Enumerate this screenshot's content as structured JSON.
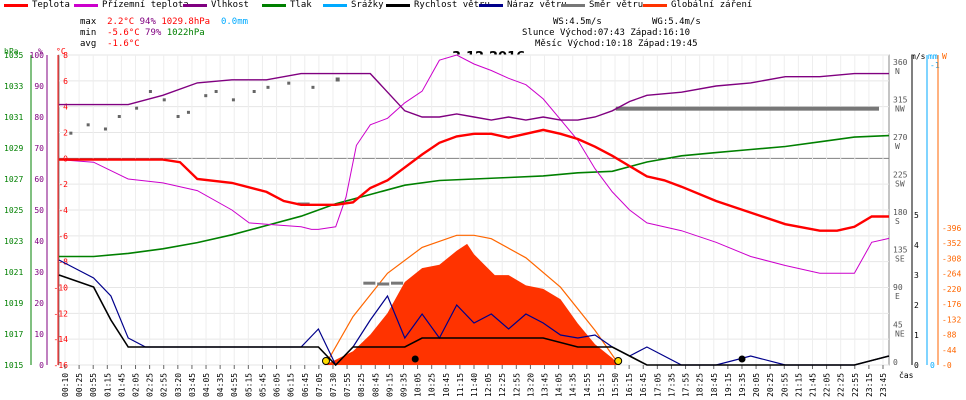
{
  "legend": [
    {
      "label": "Teplota",
      "color": "#ff0000"
    },
    {
      "label": "Přízemní teplota",
      "color": "#cc00cc"
    },
    {
      "label": "Vlhkost",
      "color": "#800080"
    },
    {
      "label": "Tlak",
      "color": "#008000"
    },
    {
      "label": "Srážky",
      "color": "#00aaff"
    },
    {
      "label": "Rychlost větru",
      "color": "#000000"
    },
    {
      "label": "Náraz větru",
      "color": "#00008b"
    },
    {
      "label": "Směr větru",
      "color": "#777777"
    },
    {
      "label": "Globální záření",
      "color": "#ff3300"
    }
  ],
  "stats": {
    "max_label": "max",
    "max_temp": "2.2°C",
    "max_hum": "94%",
    "max_press": "1029.8hPa",
    "max_rain": "0.0mm",
    "min_label": "min",
    "min_temp": "-5.6°C",
    "min_hum": "79%",
    "min_press": "1022hPa",
    "avg_label": "avg",
    "avg_temp": "-1.6°C"
  },
  "wind": {
    "ws": "WS:4.5m/s",
    "wg": "WG:5.4m/s"
  },
  "sun": {
    "label": "Slunce",
    "rise": "Východ:07:43",
    "set": "Západ:16:10"
  },
  "moon": {
    "label": "Měsíc",
    "rise": "Východ:10:18",
    "set": "Západ:19:45"
  },
  "chart_data": {
    "type": "line",
    "title": "3.12.2016",
    "xlabel": "čas",
    "x_ticks": [
      "00:10",
      "00:25",
      "00:55",
      "01:15",
      "01:45",
      "02:05",
      "02:25",
      "02:55",
      "03:20",
      "03:45",
      "04:05",
      "04:35",
      "04:55",
      "05:15",
      "05:45",
      "06:05",
      "06:15",
      "06:45",
      "07:05",
      "07:30",
      "07:55",
      "08:25",
      "08:45",
      "09:15",
      "09:35",
      "10:05",
      "10:25",
      "10:45",
      "11:15",
      "11:40",
      "12:05",
      "12:25",
      "12:55",
      "13:20",
      "13:45",
      "14:05",
      "14:35",
      "14:55",
      "15:15",
      "15:50",
      "16:15",
      "16:45",
      "17:05",
      "17:35",
      "17:55",
      "18:25",
      "18:45",
      "19:15",
      "19:35",
      "20:05",
      "20:25",
      "20:55",
      "21:15",
      "21:45",
      "22:05",
      "22:25",
      "22:55",
      "23:15",
      "23:45"
    ],
    "axes": {
      "pressure_hPa": {
        "ticks": [
          "1015",
          "1017",
          "1019",
          "1021",
          "1023",
          "1025",
          "1027",
          "1029",
          "1031",
          "1033",
          "1035"
        ],
        "label": "hPa",
        "color": "#008000"
      },
      "humidity_pct": {
        "ticks": [
          "0",
          "10",
          "20",
          "30",
          "40",
          "50",
          "60",
          "70",
          "80",
          "90",
          "100"
        ],
        "label": "%",
        "color": "#800080"
      },
      "temperature_C": {
        "ticks": [
          "-16",
          "-14",
          "-12",
          "-10",
          "-8",
          "-6",
          "-4",
          "-2",
          "0",
          "2",
          "4",
          "6",
          "8"
        ],
        "label": "°C",
        "color": "#ff0000"
      },
      "wind_dir": {
        "ticks": [
          "0",
          "45",
          "90",
          "135",
          "180",
          "225",
          "270",
          "315",
          "360"
        ],
        "names": [
          "",
          "NE",
          "E",
          "SE",
          "S",
          "SW",
          "W",
          "NW",
          "N"
        ],
        "color": "#555555"
      },
      "wind_ms": {
        "ticks": [
          "0",
          "1",
          "2",
          "3",
          "4",
          "5"
        ],
        "label": "m/s",
        "color": "#000000"
      },
      "rain_mm": {
        "ticks": [
          "0",
          "1"
        ],
        "label": "mm",
        "color": "#00aaff"
      },
      "radiation_W": {
        "ticks": [
          "0",
          "44",
          "88",
          "132",
          "176",
          "220",
          "264",
          "308",
          "352",
          "396"
        ],
        "label": "W",
        "color": "#ff6600"
      }
    },
    "series": [
      {
        "name": "Teplota",
        "unit": "°C",
        "x": [
          0,
          1,
          2,
          3,
          3.5,
          4,
          5,
          6,
          6.5,
          7,
          7.5,
          8,
          8.5,
          9,
          9.5,
          10,
          10.5,
          11,
          11.5,
          12,
          12.5,
          13,
          13.5,
          14,
          14.5,
          15,
          15.5,
          16,
          16.5,
          17,
          17.5,
          18,
          19,
          20,
          21,
          22,
          22.5,
          23,
          23.5,
          24
        ],
        "values": [
          -0.1,
          -0.1,
          -0.1,
          -0.1,
          -0.3,
          -1.6,
          -1.9,
          -2.6,
          -3.3,
          -3.6,
          -3.6,
          -3.6,
          -3.4,
          -2.3,
          -1.7,
          -0.7,
          0.3,
          1.2,
          1.7,
          1.9,
          1.9,
          1.6,
          1.9,
          2.2,
          1.9,
          1.5,
          0.9,
          0.2,
          -0.6,
          -1.4,
          -1.7,
          -2.2,
          -3.3,
          -4.2,
          -5.1,
          -5.6,
          -5.6,
          -5.3,
          -4.5,
          -4.5
        ]
      },
      {
        "name": "Přízemní teplota",
        "unit": "°C",
        "x": [
          0,
          1,
          2,
          3,
          4,
          5,
          5.5,
          6,
          7,
          7.3,
          7.5,
          8,
          8.3,
          8.6,
          9,
          9.5,
          10,
          10.5,
          11,
          11.5,
          12,
          12.5,
          13,
          13.5,
          14,
          14.5,
          15,
          15.5,
          16,
          16.5,
          17,
          18,
          19,
          20,
          21,
          22,
          23,
          23.5,
          24
        ],
        "values": [
          -0.1,
          -0.3,
          -1.6,
          -1.9,
          -2.5,
          -4.0,
          -5.0,
          -5.1,
          -5.3,
          -5.5,
          -5.5,
          -5.3,
          -3.0,
          1.0,
          2.6,
          3.1,
          4.3,
          5.2,
          7.6,
          8.0,
          7.3,
          6.8,
          6.2,
          5.7,
          4.6,
          3.0,
          1.4,
          -0.8,
          -2.6,
          -4.0,
          -5.0,
          -5.6,
          -6.5,
          -7.6,
          -8.3,
          -8.9,
          -8.9,
          -6.5,
          -6.2
        ]
      },
      {
        "name": "Vlhkost",
        "unit": "%",
        "x": [
          0,
          1,
          2,
          3,
          4,
          5,
          6,
          7,
          8,
          9,
          10,
          10.5,
          11,
          11.5,
          12,
          12.5,
          13,
          13.5,
          14,
          14.5,
          15,
          15.5,
          16,
          16.5,
          17,
          18,
          19,
          20,
          21,
          22,
          23,
          24
        ],
        "values": [
          84,
          84,
          84,
          87,
          91,
          92,
          92,
          94,
          94,
          94,
          82,
          80,
          80,
          81,
          80,
          79,
          80,
          79,
          80,
          79,
          79,
          80,
          82,
          85,
          87,
          88,
          90,
          91,
          93,
          93,
          94,
          94
        ]
      },
      {
        "name": "Tlak",
        "unit": "hPa",
        "x": [
          0,
          1,
          2,
          3,
          4,
          5,
          6,
          7,
          8,
          9,
          10,
          11,
          12,
          13,
          14,
          15,
          16,
          17,
          18,
          19,
          20,
          21,
          22,
          23,
          24
        ],
        "values": [
          1022.0,
          1022.0,
          1022.2,
          1022.5,
          1022.9,
          1023.4,
          1024.0,
          1024.6,
          1025.4,
          1026.0,
          1026.6,
          1026.9,
          1027.0,
          1027.1,
          1027.2,
          1027.4,
          1027.5,
          1028.1,
          1028.5,
          1028.7,
          1028.9,
          1029.1,
          1029.4,
          1029.7,
          1029.8
        ]
      },
      {
        "name": "Rychlost větru",
        "unit": "m/s",
        "x": [
          0,
          0.5,
          1,
          1.5,
          2,
          2.5,
          3,
          4,
          5,
          6,
          7,
          7.5,
          8,
          8.5,
          9,
          9.5,
          10,
          10.5,
          11,
          12,
          13,
          14,
          15,
          15.5,
          16,
          16.5,
          17,
          18,
          19,
          20,
          21,
          22,
          23,
          24
        ],
        "values": [
          3.0,
          2.8,
          2.6,
          1.5,
          0.6,
          0.6,
          0.6,
          0.6,
          0.6,
          0.6,
          0.6,
          0.6,
          0,
          0.6,
          0.6,
          0.6,
          0.6,
          0.9,
          0.9,
          0.9,
          0.9,
          0.9,
          0.6,
          0.6,
          0.6,
          0.3,
          0,
          0,
          0,
          0,
          0,
          0,
          0,
          0.3
        ]
      },
      {
        "name": "Náraz větru",
        "unit": "m/s",
        "x": [
          0,
          0.5,
          1,
          1.5,
          2,
          2.5,
          3,
          4,
          5,
          6,
          7,
          7.5,
          8,
          8.5,
          9,
          9.5,
          10,
          10.5,
          11,
          11.5,
          12,
          12.5,
          13,
          13.5,
          14,
          14.5,
          15,
          15.5,
          16,
          16.5,
          17,
          18,
          19,
          20,
          21,
          22,
          23,
          24
        ],
        "values": [
          3.5,
          3.2,
          2.9,
          2.3,
          0.9,
          0.6,
          0.6,
          0.6,
          0.6,
          0.6,
          0.6,
          1.2,
          0,
          0.6,
          1.5,
          2.3,
          0.9,
          1.7,
          0.9,
          2.0,
          1.4,
          1.7,
          1.2,
          1.7,
          1.4,
          1.0,
          0.9,
          1.0,
          0.6,
          0.3,
          0.6,
          0,
          0,
          0.3,
          0,
          0,
          0,
          0.3
        ]
      },
      {
        "name": "Globální záření",
        "unit": "W",
        "x": [
          7.7,
          8,
          8.5,
          9,
          9.5,
          10,
          10.5,
          11,
          11.5,
          11.8,
          12,
          12.3,
          12.6,
          13,
          13.5,
          14,
          14.5,
          15,
          15.5,
          16,
          16.2
        ],
        "values": [
          0,
          15,
          40,
          88,
          150,
          240,
          280,
          290,
          330,
          350,
          320,
          290,
          260,
          260,
          230,
          220,
          190,
          120,
          60,
          20,
          0
        ]
      },
      {
        "name": "Teoretické záření",
        "unit": "W",
        "x": [
          7.7,
          8.5,
          9.5,
          10.5,
          11.5,
          12,
          12.5,
          13.5,
          14.5,
          15.5,
          16.2
        ],
        "values": [
          0,
          140,
          265,
          340,
          375,
          375,
          365,
          310,
          225,
          100,
          0
        ]
      }
    ]
  }
}
